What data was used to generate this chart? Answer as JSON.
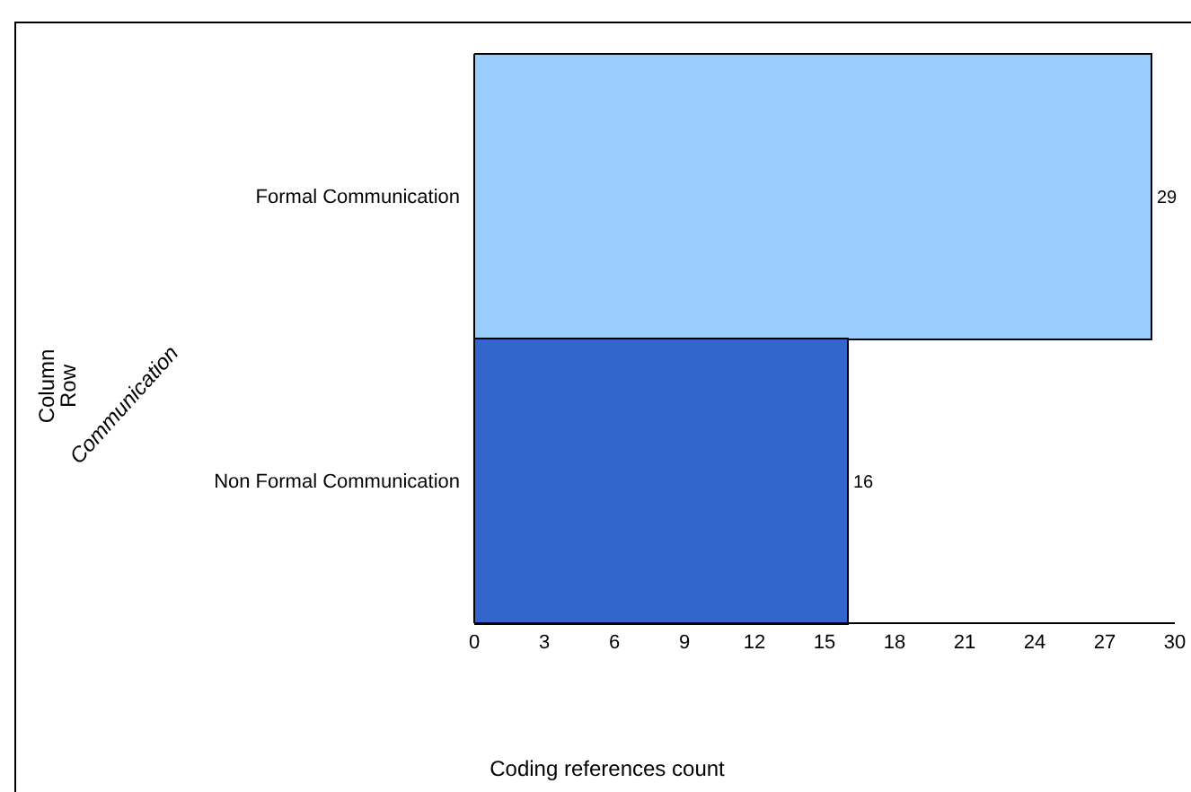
{
  "chart_data": {
    "type": "bar",
    "orientation": "horizontal",
    "categories": [
      "Formal Communication",
      "Non Formal Communication"
    ],
    "values": [
      29,
      16
    ],
    "colors": [
      "#99ccff",
      "#3366cc"
    ],
    "xlim": [
      0,
      30
    ],
    "xticks": [
      0,
      3,
      6,
      9,
      12,
      15,
      18,
      21,
      24,
      27,
      30
    ],
    "xlabel": "Coding references count",
    "ylabel": "Communication",
    "annotations": [
      "Column",
      "Row"
    ],
    "data_labels": true
  }
}
